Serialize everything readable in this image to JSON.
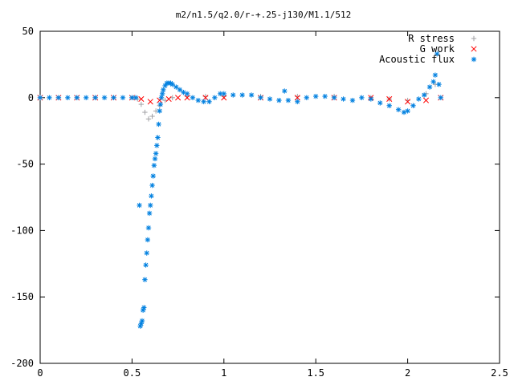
{
  "chart_data": {
    "type": "scatter",
    "title": "m2/n1.5/q2.0/r-+.25-j130/M1.1/512",
    "xlabel": "",
    "ylabel": "",
    "xlim": [
      0,
      2.5
    ],
    "ylim": [
      -200,
      50
    ],
    "x_ticks": [
      "0",
      "0.5",
      "1",
      "1.5",
      "2",
      "2.5"
    ],
    "y_ticks": [
      "50",
      "0",
      "-50",
      "-100",
      "-150",
      "-200"
    ],
    "legend_position": "top-right",
    "grid": false,
    "series": [
      {
        "name": "R stress",
        "marker": "+",
        "color": "#a0a0a4",
        "x": [
          0.0,
          0.1,
          0.2,
          0.3,
          0.4,
          0.5,
          0.53,
          0.55,
          0.57,
          0.59,
          0.61,
          0.63,
          0.65,
          0.68,
          0.72,
          0.8,
          0.9,
          1.0,
          1.2,
          1.4,
          1.6,
          1.8,
          1.9,
          2.0,
          2.1,
          2.15
        ],
        "values": [
          0,
          0,
          0,
          0,
          0,
          0,
          -1,
          -5,
          -11,
          -16,
          -14,
          -10,
          -6,
          -2,
          0,
          1,
          1,
          1,
          1,
          1,
          1,
          0,
          -1,
          -2,
          3,
          10
        ]
      },
      {
        "name": "G work",
        "marker": "x",
        "color": "#ff0000",
        "x": [
          0.0,
          0.1,
          0.2,
          0.3,
          0.4,
          0.5,
          0.55,
          0.6,
          0.65,
          0.7,
          0.75,
          0.8,
          0.9,
          1.0,
          1.2,
          1.4,
          1.6,
          1.8,
          1.9,
          2.0,
          2.1,
          2.18
        ],
        "values": [
          0,
          0,
          0,
          0,
          0,
          0,
          -1,
          -3,
          -2,
          -1,
          0,
          0,
          0,
          0,
          0,
          0,
          0,
          0,
          -1,
          -3,
          -2,
          0
        ]
      },
      {
        "name": "Acoustic flux",
        "marker": "*",
        "color": "#0080e0",
        "x": [
          0.0,
          0.05,
          0.1,
          0.15,
          0.2,
          0.25,
          0.3,
          0.35,
          0.4,
          0.45,
          0.5,
          0.52,
          0.54,
          0.545,
          0.55,
          0.555,
          0.56,
          0.565,
          0.57,
          0.575,
          0.58,
          0.585,
          0.59,
          0.595,
          0.6,
          0.605,
          0.61,
          0.615,
          0.62,
          0.625,
          0.63,
          0.635,
          0.64,
          0.645,
          0.65,
          0.655,
          0.66,
          0.665,
          0.67,
          0.68,
          0.69,
          0.7,
          0.71,
          0.72,
          0.74,
          0.76,
          0.78,
          0.8,
          0.83,
          0.86,
          0.89,
          0.92,
          0.95,
          0.98,
          1.0,
          1.05,
          1.1,
          1.15,
          1.2,
          1.25,
          1.3,
          1.33,
          1.35,
          1.4,
          1.45,
          1.5,
          1.55,
          1.6,
          1.65,
          1.7,
          1.75,
          1.8,
          1.85,
          1.9,
          1.95,
          1.98,
          2.0,
          2.03,
          2.06,
          2.09,
          2.12,
          2.14,
          2.15,
          2.16,
          2.17,
          2.18
        ],
        "values": [
          0,
          0,
          0,
          0,
          0,
          0,
          0,
          0,
          0,
          0,
          0,
          0,
          -81,
          -172,
          -170,
          -168,
          -160,
          -158,
          -137,
          -126,
          -117,
          -107,
          -98,
          -87,
          -81,
          -74,
          -66,
          -59,
          -51,
          -46,
          -42,
          -36,
          -30,
          -20,
          -10,
          -5,
          0,
          3,
          6,
          9,
          11,
          11,
          11,
          10,
          8,
          6,
          4,
          3,
          0,
          -2,
          -3,
          -3,
          0,
          3,
          3,
          2,
          2,
          2,
          0,
          -1,
          -2,
          5,
          -2,
          -3,
          0,
          1,
          1,
          0,
          -1,
          -2,
          0,
          -1,
          -4,
          -6,
          -9,
          -11,
          -10,
          -6,
          -1,
          2,
          8,
          12,
          17,
          33,
          10,
          0
        ]
      }
    ]
  }
}
